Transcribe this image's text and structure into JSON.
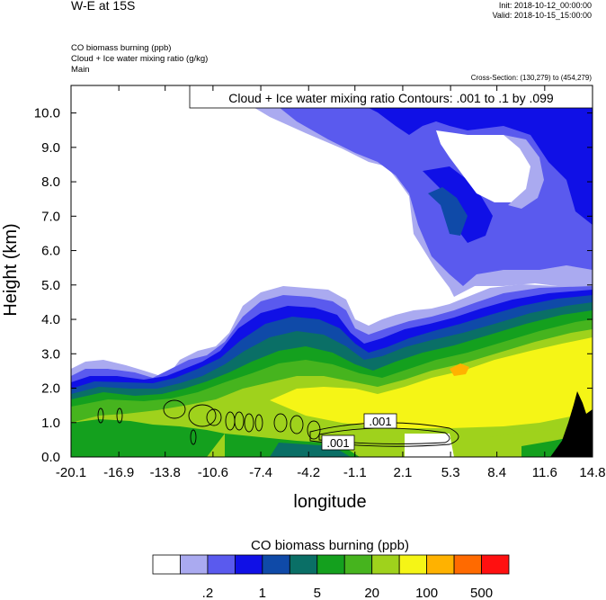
{
  "header": {
    "title": "W-E at 15S",
    "init": "Init: 2018-10-12_00:00:00",
    "valid": "Valid: 2018-10-15_15:00:00",
    "descriptions": [
      "CO biomass burning   (ppb)",
      "Cloud + Ice water mixing ratio   (g/kg)",
      "Main"
    ],
    "cross_section": "Cross-Section: (130,279) to (454,279)",
    "contour_note": "Cloud + Ice water mixing ratio Contours: .001 to .1 by .099"
  },
  "chart_data": {
    "type": "heatmap",
    "title": "W-E at 15S",
    "xlabel": "longitude",
    "ylabel": "Height (km)",
    "xlim": [
      -20.1,
      14.8
    ],
    "ylim": [
      0.0,
      10.8
    ],
    "x_ticks": [
      "-20.1",
      "-16.9",
      "-13.8",
      "-10.6",
      "-7.4",
      "-4.2",
      "-1.1",
      "2.1",
      "5.3",
      "8.4",
      "11.6",
      "14.8"
    ],
    "y_ticks": [
      "0.0",
      "1.0",
      "2.0",
      "3.0",
      "4.0",
      "5.0",
      "6.0",
      "7.0",
      "8.0",
      "9.0",
      "10.0"
    ],
    "contour_labels": [
      ".001",
      ".001"
    ],
    "colorbar": {
      "label": "CO biomass burning  (ppb)",
      "tick_labels": [
        ".2",
        "1",
        "5",
        "20",
        "100",
        "500"
      ],
      "colors": [
        "#ffffff",
        "#aaaaf0",
        "#5a5aee",
        "#1010e6",
        "#0f4aa8",
        "#0a6f66",
        "#14a01e",
        "#46b41e",
        "#9fd21c",
        "#f5f516",
        "#ffb200",
        "#ff6a00",
        "#ff1010"
      ]
    }
  }
}
